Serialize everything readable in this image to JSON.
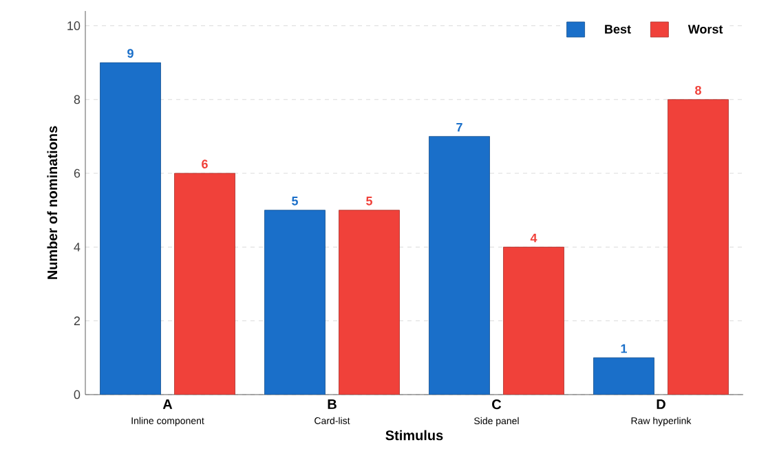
{
  "chart_data": {
    "type": "bar",
    "xlabel": "Stimulus",
    "ylabel": "Number of nominations",
    "categories": [
      "A",
      "B",
      "C",
      "D"
    ],
    "series": [
      {
        "name": "Best",
        "color": "#1a6fc9",
        "values": [
          9,
          5,
          7,
          1
        ]
      },
      {
        "name": "Worst",
        "color": "#f0413a",
        "values": [
          6,
          5,
          4,
          8
        ]
      }
    ],
    "annotations": [
      "Inline component",
      "Card-list",
      "Side panel",
      "Raw hyperlink"
    ],
    "ylim": [
      0,
      10.4
    ],
    "yticks": [
      0,
      2,
      4,
      6,
      8,
      10
    ],
    "grid": "y",
    "legend": "top right",
    "data_labels": true
  }
}
